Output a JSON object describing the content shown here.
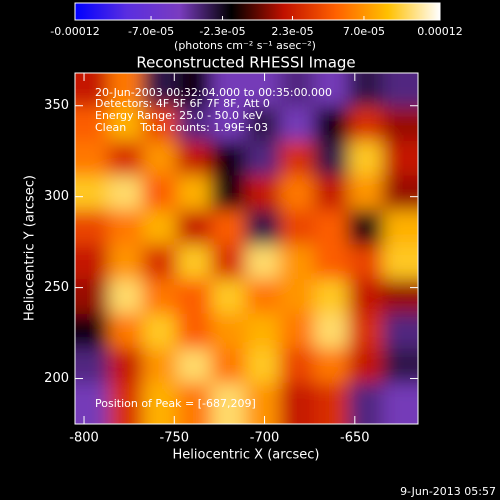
{
  "chart_data": {
    "type": "heatmap",
    "title": "Reconstructed RHESSI Image",
    "colorbar_label": "(photons cm⁻² s⁻¹ asec⁻²)",
    "xlabel": "Heliocentric X (arcsec)",
    "ylabel": "Heliocentric Y (arcsec)",
    "annotations": [
      "20-Jun-2003 00:32:04.000 to 00:35:00.000",
      "Detectors: 4F 5F 6F 7F 8F, Att 0",
      "Energy Range: 25.0 - 50.0 keV",
      "Clean    Total counts: 1.99E+03"
    ],
    "peak_label": "Position of Peak = [-687,209]",
    "date_stamp": "9-Jun-2013 05:57",
    "colormap": [
      "#0000ff",
      "#5a2ee0",
      "#7a3cc0",
      "#000000",
      "#c01000",
      "#ff6000",
      "#ffc000",
      "#ffffff"
    ],
    "zlim": [
      -0.00012,
      0.00012
    ],
    "zticks": [
      -0.00012,
      {
        "value": -7e-05,
        "label": "-7.0e-05"
      },
      {
        "value": -2.3e-05,
        "label": "-2.3e-05"
      },
      {
        "value": 2.3e-05,
        "label": "2.3e-05"
      },
      {
        "value": 7e-05,
        "label": "7.0e-05"
      },
      0.00012
    ],
    "xlim": [
      -805,
      -615
    ],
    "ylim": [
      175,
      368
    ],
    "xticks": [
      -800,
      -750,
      -700,
      -650
    ],
    "yticks": [
      200,
      250,
      300,
      350
    ],
    "x": [
      -795,
      -776,
      -757,
      -738,
      -719,
      -700,
      -681,
      -662,
      -643,
      -624
    ],
    "y": [
      358,
      339,
      320,
      301,
      282,
      263,
      244,
      225,
      206,
      187
    ],
    "z": [
      [
        2e-05,
        6e-05,
        -3e-05,
        -2e-05,
        -5e-05,
        -5e-05,
        -4e-05,
        -5e-05,
        -3e-05,
        -4e-05
      ],
      [
        5e-05,
        8e-05,
        4e-05,
        -4e-05,
        -5e-05,
        -3e-05,
        -5e-05,
        -2e-05,
        3e-05,
        1e-05
      ],
      [
        6e-05,
        3e-05,
        7e-05,
        2e-05,
        -2e-05,
        -4e-05,
        3e-05,
        -3e-05,
        9e-05,
        2e-05
      ],
      [
        9e-05,
        0.0001,
        5e-05,
        8e-05,
        -2e-05,
        2e-05,
        6e-05,
        2e-05,
        7e-05,
        1e-05
      ],
      [
        4e-05,
        6e-05,
        8e-05,
        2e-05,
        5e-05,
        -3e-05,
        4e-05,
        5e-05,
        -2e-05,
        8e-05
      ],
      [
        2e-05,
        7e-05,
        3e-05,
        9e-05,
        3e-05,
        0.0001,
        7e-05,
        5e-05,
        4e-05,
        9e-05
      ],
      [
        1e-05,
        0.0001,
        6e-05,
        5e-05,
        9e-05,
        6e-05,
        7e-05,
        9e-05,
        2e-05,
        1e-05
      ],
      [
        -2e-05,
        6e-05,
        9e-05,
        5e-05,
        7e-05,
        8e-05,
        6e-05,
        0.0001,
        3e-05,
        -4e-05
      ],
      [
        -4e-05,
        2e-05,
        7e-05,
        0.0001,
        6e-05,
        9e-05,
        4e-05,
        6e-05,
        2e-05,
        -3e-05
      ],
      [
        -5e-05,
        3e-05,
        8e-05,
        6e-05,
        0.0001,
        7e-05,
        2e-05,
        3e-05,
        -4e-05,
        -5e-05
      ]
    ]
  }
}
